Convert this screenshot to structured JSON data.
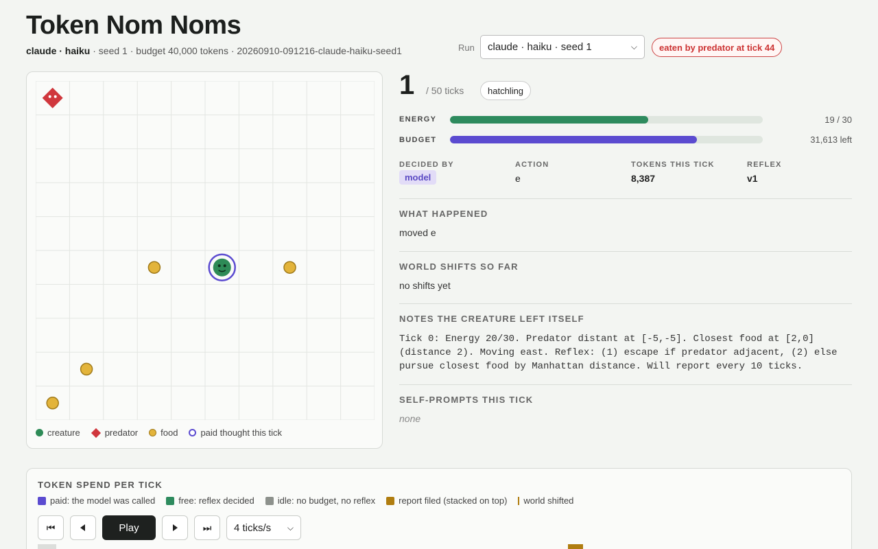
{
  "header": {
    "title": "Token Nom Noms",
    "model": "claude · haiku",
    "details": " · seed 1 · budget 40,000 tokens · 20260910-091216-claude-haiku-seed1",
    "run_label": "Run",
    "run_selected": "claude · haiku · seed 1",
    "status": "eaten by predator at tick 44"
  },
  "board": {
    "cols": 10,
    "rows": 10,
    "creature": {
      "col": 5,
      "row": 5
    },
    "predator": {
      "col": 0,
      "row": 0
    },
    "food": [
      {
        "col": 3,
        "row": 5
      },
      {
        "col": 7,
        "row": 5
      },
      {
        "col": 1,
        "row": 8
      },
      {
        "col": 0,
        "row": 9
      }
    ],
    "paid_thought": true,
    "legend": {
      "creature": "creature",
      "predator": "predator",
      "food": "food",
      "paid": "paid thought this tick"
    }
  },
  "tick": {
    "number": "1",
    "of": "/ 50 ticks",
    "stage": "hatchling"
  },
  "meters": {
    "energy_label": "ENERGY",
    "energy_value": "19 / 30",
    "energy_fraction": 0.633,
    "budget_label": "BUDGET",
    "budget_value": "31,613 left",
    "budget_fraction": 0.79
  },
  "decision": {
    "decided_by_label": "DECIDED BY",
    "decided_by": "model",
    "action_label": "ACTION",
    "action": "e",
    "tokens_label": "TOKENS THIS TICK",
    "tokens": "8,387",
    "reflex_label": "REFLEX",
    "reflex": "v1"
  },
  "sections": {
    "what_happened_title": "WHAT HAPPENED",
    "what_happened": "moved e",
    "shifts_title": "WORLD SHIFTS SO FAR",
    "shifts": "no shifts yet",
    "notes_title": "NOTES THE CREATURE LEFT ITSELF",
    "notes": "Tick 0: Energy 20/30. Predator distant at [-5,-5]. Closest food at [2,0] (distance 2). Moving east. Reflex: (1) escape if predator adjacent, (2) else pursue closest food by Manhattan distance. Will report every 10 ticks.",
    "selfprompts_title": "SELF-PROMPTS THIS TICK",
    "selfprompts": "none"
  },
  "spend": {
    "title": "TOKEN SPEND PER TICK",
    "legend": {
      "paid": "paid: the model was called",
      "free": "free: reflex decided",
      "idle": "idle: no budget, no reflex",
      "report": "report filed (stacked on top)",
      "shift": "world shifted"
    },
    "controls": {
      "play": "Play",
      "speed": "4 ticks/s"
    }
  },
  "colors": {
    "creature": "#2e8b57",
    "predator": "#d0373d",
    "food": "#e3b43b",
    "paid": "#5b4bd0",
    "idle": "#8d918c",
    "report": "#b07d10",
    "energy": "#2e8b5e",
    "budget": "#5b4bd0"
  }
}
